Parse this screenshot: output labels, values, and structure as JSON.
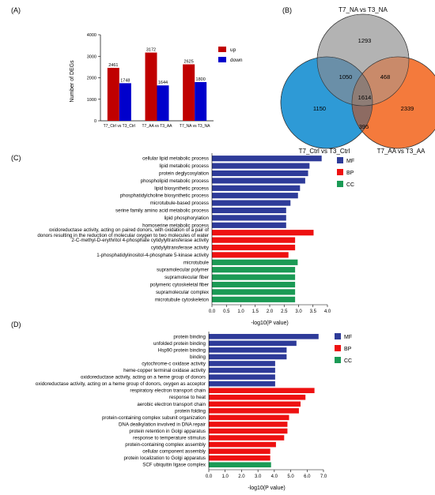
{
  "panel_labels": {
    "a": "(A)",
    "b": "(B)",
    "c": "(C)",
    "d": "(D)"
  },
  "colors": {
    "up": "#c00000",
    "down": "#0000cc",
    "MF": "#2e3b99",
    "BP": "#ee1111",
    "CC": "#1b9a55",
    "venn_top": "#b3b3b3",
    "venn_left": "#2e9ad6",
    "venn_right": "#f47a3c"
  },
  "chart_data": [
    {
      "type": "bar",
      "ylabel": "Number of DEGs",
      "ylim": [
        0,
        4000
      ],
      "yticks": [
        "0",
        "1000",
        "2000",
        "3000",
        "4000"
      ],
      "categories": [
        "T7_Ctrl vs T3_Ctrl",
        "T7_AA vs T3_AA",
        "T7_NA vs T3_NA"
      ],
      "series": [
        {
          "name": "up",
          "values": [
            2461,
            3172,
            2625
          ],
          "labels": [
            "2461",
            "3172",
            "2625"
          ]
        },
        {
          "name": "down",
          "values": [
            1748,
            1644,
            1800
          ],
          "labels": [
            "1748",
            "1644",
            "1800"
          ]
        }
      ],
      "legend": "top-right"
    },
    {
      "type": "venn",
      "sets": [
        "T7_NA vs T3_NA",
        "T7_Ctrl vs T3_Ctrl",
        "T7_AA vs T3_AA"
      ],
      "regions": {
        "top_only": "1293",
        "left_only": "1150",
        "right_only": "2339",
        "top_left": "1050",
        "top_right": "468",
        "left_right": "395",
        "all": "1614"
      }
    },
    {
      "type": "bar",
      "orientation": "horizontal",
      "xlabel": "-log10(P value)",
      "xlim": [
        0,
        4.0
      ],
      "xticks": [
        "0.0",
        "0.5",
        "1.0",
        "1.5",
        "2.0",
        "2.5",
        "3.0",
        "3.5",
        "4.0"
      ],
      "legend": [
        "MF",
        "BP",
        "CC"
      ],
      "legend_position": "right",
      "bars": [
        {
          "label": "cellular lipid metabolic process",
          "value": 3.8,
          "group": "MF"
        },
        {
          "label": "lipid metabolic process",
          "value": 3.38,
          "group": "MF"
        },
        {
          "label": "protein deglycosylation",
          "value": 3.33,
          "group": "MF"
        },
        {
          "label": "phospholipid metabolic process",
          "value": 3.23,
          "group": "MF"
        },
        {
          "label": "lipid biosynthetic process",
          "value": 3.05,
          "group": "MF"
        },
        {
          "label": "phosphatidylcholine biosynthetic process",
          "value": 2.98,
          "group": "MF"
        },
        {
          "label": "microtubule-based process",
          "value": 2.72,
          "group": "MF"
        },
        {
          "label": "serine family amino acid metabolic process",
          "value": 2.57,
          "group": "MF"
        },
        {
          "label": "lipid phosphorylation",
          "value": 2.57,
          "group": "MF"
        },
        {
          "label": "homoserine metabolic process",
          "value": 2.57,
          "group": "MF"
        },
        {
          "label": "oxidoreductase activity, acting on paired donors, with oxidation of a pair of donors resulting in the reduction of molecular oxygen to two molecules of water",
          "value": 3.52,
          "group": "BP"
        },
        {
          "label": "2-C-methyl-D-erythritol 4-phosphate cytidylyltransferase activity",
          "value": 2.88,
          "group": "BP"
        },
        {
          "label": "cytidylyltransferase activity",
          "value": 2.88,
          "group": "BP"
        },
        {
          "label": "1-phosphatidylinositol-4-phosphate 5-kinase activity",
          "value": 2.65,
          "group": "BP"
        },
        {
          "label": "microtubule",
          "value": 2.97,
          "group": "CC"
        },
        {
          "label": "supramolecular polymer",
          "value": 2.88,
          "group": "CC"
        },
        {
          "label": "supramolecular fiber",
          "value": 2.88,
          "group": "CC"
        },
        {
          "label": "polymeric cytoskeletal fiber",
          "value": 2.88,
          "group": "CC"
        },
        {
          "label": "supramolecular complex",
          "value": 2.88,
          "group": "CC"
        },
        {
          "label": "microtubule cytoskeleton",
          "value": 2.88,
          "group": "CC"
        }
      ]
    },
    {
      "type": "bar",
      "orientation": "horizontal",
      "xlabel": "-log10(P value)",
      "xlim": [
        0,
        7.0
      ],
      "xticks": [
        "0.0",
        "1.0",
        "2.0",
        "3.0",
        "4.0",
        "5.0",
        "6.0",
        "7.0"
      ],
      "legend": [
        "MF",
        "BP",
        "CC"
      ],
      "legend_position": "right",
      "bars": [
        {
          "label": "protein binding",
          "value": 6.7,
          "group": "MF"
        },
        {
          "label": "unfolded protein binding",
          "value": 5.35,
          "group": "MF"
        },
        {
          "label": "Hsp90 protein binding",
          "value": 4.75,
          "group": "MF"
        },
        {
          "label": "binding",
          "value": 4.75,
          "group": "MF"
        },
        {
          "label": "cytochrome-c oxidase activity",
          "value": 4.05,
          "group": "MF"
        },
        {
          "label": "heme-copper terminal oxidase activity",
          "value": 4.05,
          "group": "MF"
        },
        {
          "label": "oxidoreductase activity, acting on a heme group of donors",
          "value": 4.05,
          "group": "MF"
        },
        {
          "label": "oxidoreductase activity, acting on a heme group of donors, oxygen as acceptor",
          "value": 4.05,
          "group": "MF"
        },
        {
          "label": "respiratory electron transport chain",
          "value": 6.45,
          "group": "BP"
        },
        {
          "label": "response to heat",
          "value": 5.9,
          "group": "BP"
        },
        {
          "label": "aerobic electron transport chain",
          "value": 5.6,
          "group": "BP"
        },
        {
          "label": "protein folding",
          "value": 5.5,
          "group": "BP"
        },
        {
          "label": "protein-containing complex subunit organization",
          "value": 4.9,
          "group": "BP"
        },
        {
          "label": "DNA dealkylation involved in DNA repair",
          "value": 4.8,
          "group": "BP"
        },
        {
          "label": "protein retention in Golgi apparatus",
          "value": 4.8,
          "group": "BP"
        },
        {
          "label": "response to temperature stimulus",
          "value": 4.6,
          "group": "BP"
        },
        {
          "label": "protein-containing complex assembly",
          "value": 4.1,
          "group": "BP"
        },
        {
          "label": "cellular component assembly",
          "value": 3.75,
          "group": "BP"
        },
        {
          "label": "protein localization to Golgi apparatus",
          "value": 3.75,
          "group": "BP"
        },
        {
          "label": "SCF ubiquitin ligase complex",
          "value": 3.8,
          "group": "CC"
        }
      ]
    }
  ]
}
